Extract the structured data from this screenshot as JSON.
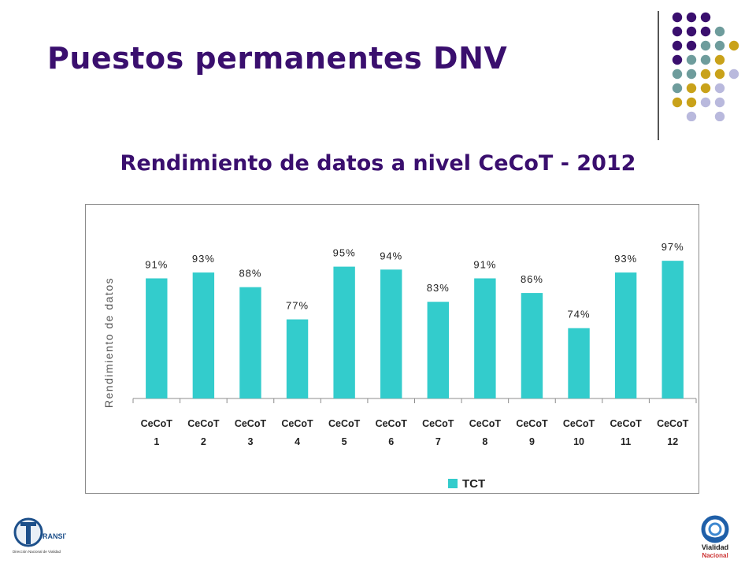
{
  "slide": {
    "title": "Puestos permanentes DNV",
    "subtitle": "Rendimiento de datos a nivel CeCoT - 2012"
  },
  "chart_data": {
    "type": "bar",
    "ylabel": "Rendimiento de datos",
    "categories": [
      [
        "CeCoT",
        "1"
      ],
      [
        "CeCoT",
        "2"
      ],
      [
        "CeCoT",
        "3"
      ],
      [
        "CeCoT",
        "4"
      ],
      [
        "CeCoT",
        "5"
      ],
      [
        "CeCoT",
        "6"
      ],
      [
        "CeCoT",
        "7"
      ],
      [
        "CeCoT",
        "8"
      ],
      [
        "CeCoT",
        "9"
      ],
      [
        "CeCoT",
        "10"
      ],
      [
        "CeCoT",
        "11"
      ],
      [
        "CeCoT",
        "12"
      ]
    ],
    "series": [
      {
        "name": "TCT",
        "color": "#33cccc",
        "values": [
          91,
          93,
          88,
          77,
          95,
          94,
          83,
          91,
          86,
          74,
          93,
          97
        ],
        "data_labels": [
          "91%",
          "93%",
          "88%",
          "77%",
          "95%",
          "94%",
          "83%",
          "91%",
          "86%",
          "74%",
          "93%",
          "97%"
        ]
      }
    ],
    "ylim": [
      50,
      100
    ],
    "grid": false,
    "legend_position": "bottom"
  },
  "colors": {
    "title": "#3a0f6e",
    "dot_purple": "#3a0f6e",
    "dot_teal": "#6e9c9c",
    "dot_gold": "#c9a21a",
    "dot_lavender": "#b9b9dd"
  },
  "logos": {
    "left_text": "RANSITO",
    "left_caption": "Dirección Nacional de Vialidad",
    "right_line1": "Vialidad",
    "right_line2": "Nacional"
  }
}
